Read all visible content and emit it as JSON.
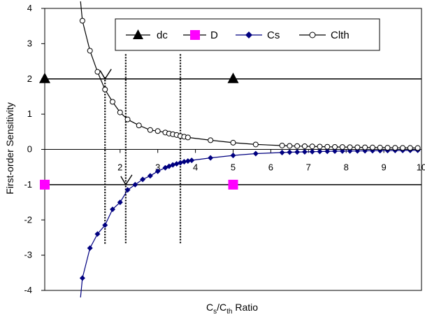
{
  "chart_data": {
    "type": "line",
    "title": "",
    "xlabel": {
      "main": "C",
      "sub1": "s",
      "mid": "/C",
      "sub2": "th",
      "tail": " Ratio"
    },
    "ylabel": "First-order Sensitivity",
    "xlim": [
      0,
      10
    ],
    "ylim": [
      -4,
      4
    ],
    "x_ticks": [
      "2",
      "3",
      "4",
      "5",
      "6",
      "7",
      "8",
      "9",
      "10"
    ],
    "y_ticks": [
      "4",
      "3",
      "2",
      "1",
      "0",
      "-1",
      "-2",
      "-3",
      "-4"
    ],
    "grid": false,
    "legend_position": "top-right",
    "legend": [
      "dc",
      "D",
      "Cs",
      "Clth"
    ],
    "series": [
      {
        "name": "dc",
        "marker": "triangle",
        "color": "#000000",
        "points": [
          [
            0.0,
            2
          ],
          [
            5.0,
            2
          ]
        ]
      },
      {
        "name": "D",
        "marker": "square",
        "color": "#FF00FF",
        "points": [
          [
            0.0,
            -1
          ],
          [
            5.0,
            -1
          ]
        ]
      },
      {
        "name": "Cs",
        "marker": "diamond",
        "color": "#000080",
        "points": [
          [
            1.0,
            -3.65
          ],
          [
            1.2,
            -2.8
          ],
          [
            1.4,
            -2.4
          ],
          [
            1.6,
            -2.15
          ],
          [
            1.8,
            -1.7
          ],
          [
            2.0,
            -1.5
          ],
          [
            2.2,
            -1.15
          ],
          [
            2.4,
            -1.0
          ],
          [
            2.6,
            -0.85
          ],
          [
            2.8,
            -0.75
          ],
          [
            3.0,
            -0.62
          ],
          [
            3.2,
            -0.52
          ],
          [
            3.3,
            -0.48
          ],
          [
            3.4,
            -0.44
          ],
          [
            3.5,
            -0.41
          ],
          [
            3.6,
            -0.38
          ],
          [
            3.7,
            -0.35
          ],
          [
            3.8,
            -0.33
          ],
          [
            3.9,
            -0.31
          ],
          [
            4.4,
            -0.24
          ],
          [
            5.0,
            -0.17
          ],
          [
            5.6,
            -0.12
          ],
          [
            6.3,
            -0.09
          ],
          [
            6.5,
            -0.08
          ],
          [
            6.7,
            -0.075
          ],
          [
            6.9,
            -0.07
          ],
          [
            7.1,
            -0.065
          ],
          [
            7.3,
            -0.06
          ],
          [
            7.5,
            -0.055
          ],
          [
            7.7,
            -0.05
          ],
          [
            7.9,
            -0.047
          ],
          [
            8.1,
            -0.045
          ],
          [
            8.3,
            -0.043
          ],
          [
            8.5,
            -0.04
          ],
          [
            8.7,
            -0.037
          ],
          [
            8.9,
            -0.035
          ],
          [
            9.1,
            -0.033
          ],
          [
            9.3,
            -0.031
          ],
          [
            9.5,
            -0.03
          ],
          [
            9.7,
            -0.028
          ],
          [
            9.9,
            -0.026
          ]
        ]
      },
      {
        "name": "Clth",
        "marker": "circle",
        "color": "#000000",
        "points": [
          [
            1.0,
            3.65
          ],
          [
            1.2,
            2.8
          ],
          [
            1.4,
            2.2
          ],
          [
            1.6,
            1.7
          ],
          [
            1.8,
            1.35
          ],
          [
            2.0,
            1.05
          ],
          [
            2.2,
            0.85
          ],
          [
            2.5,
            0.68
          ],
          [
            2.8,
            0.55
          ],
          [
            3.0,
            0.52
          ],
          [
            3.2,
            0.48
          ],
          [
            3.3,
            0.45
          ],
          [
            3.4,
            0.43
          ],
          [
            3.5,
            0.41
          ],
          [
            3.6,
            0.38
          ],
          [
            3.7,
            0.36
          ],
          [
            3.8,
            0.34
          ],
          [
            4.4,
            0.26
          ],
          [
            5.0,
            0.19
          ],
          [
            5.6,
            0.14
          ],
          [
            6.3,
            0.11
          ],
          [
            6.5,
            0.1
          ],
          [
            6.7,
            0.095
          ],
          [
            6.9,
            0.09
          ],
          [
            7.1,
            0.085
          ],
          [
            7.3,
            0.08
          ],
          [
            7.5,
            0.075
          ],
          [
            7.7,
            0.07
          ],
          [
            7.9,
            0.067
          ],
          [
            8.1,
            0.063
          ],
          [
            8.3,
            0.06
          ],
          [
            8.5,
            0.057
          ],
          [
            8.7,
            0.054
          ],
          [
            8.9,
            0.051
          ],
          [
            9.1,
            0.048
          ],
          [
            9.3,
            0.045
          ],
          [
            9.5,
            0.043
          ],
          [
            9.7,
            0.041
          ],
          [
            9.9,
            0.039
          ]
        ]
      }
    ],
    "curve_extents": {
      "Cs_start": [
        0.95,
        -4.2
      ],
      "Clth_start": [
        0.95,
        4.2
      ],
      "end_x": 10
    },
    "reference_lines": [
      2,
      -1
    ],
    "vertical_dotted_lines": [
      {
        "x": 1.6,
        "y_range": [
          -2.7,
          2.05
        ]
      },
      {
        "x": 2.15,
        "y_range": [
          -2.7,
          2.7
        ]
      },
      {
        "x": 3.6,
        "y_range": [
          -2.7,
          2.7
        ]
      }
    ],
    "annotations": [
      {
        "type": "arrow",
        "tip": [
          1.6,
          2.0
        ]
      },
      {
        "type": "arrow",
        "tip": [
          2.15,
          -1.0
        ]
      }
    ]
  }
}
